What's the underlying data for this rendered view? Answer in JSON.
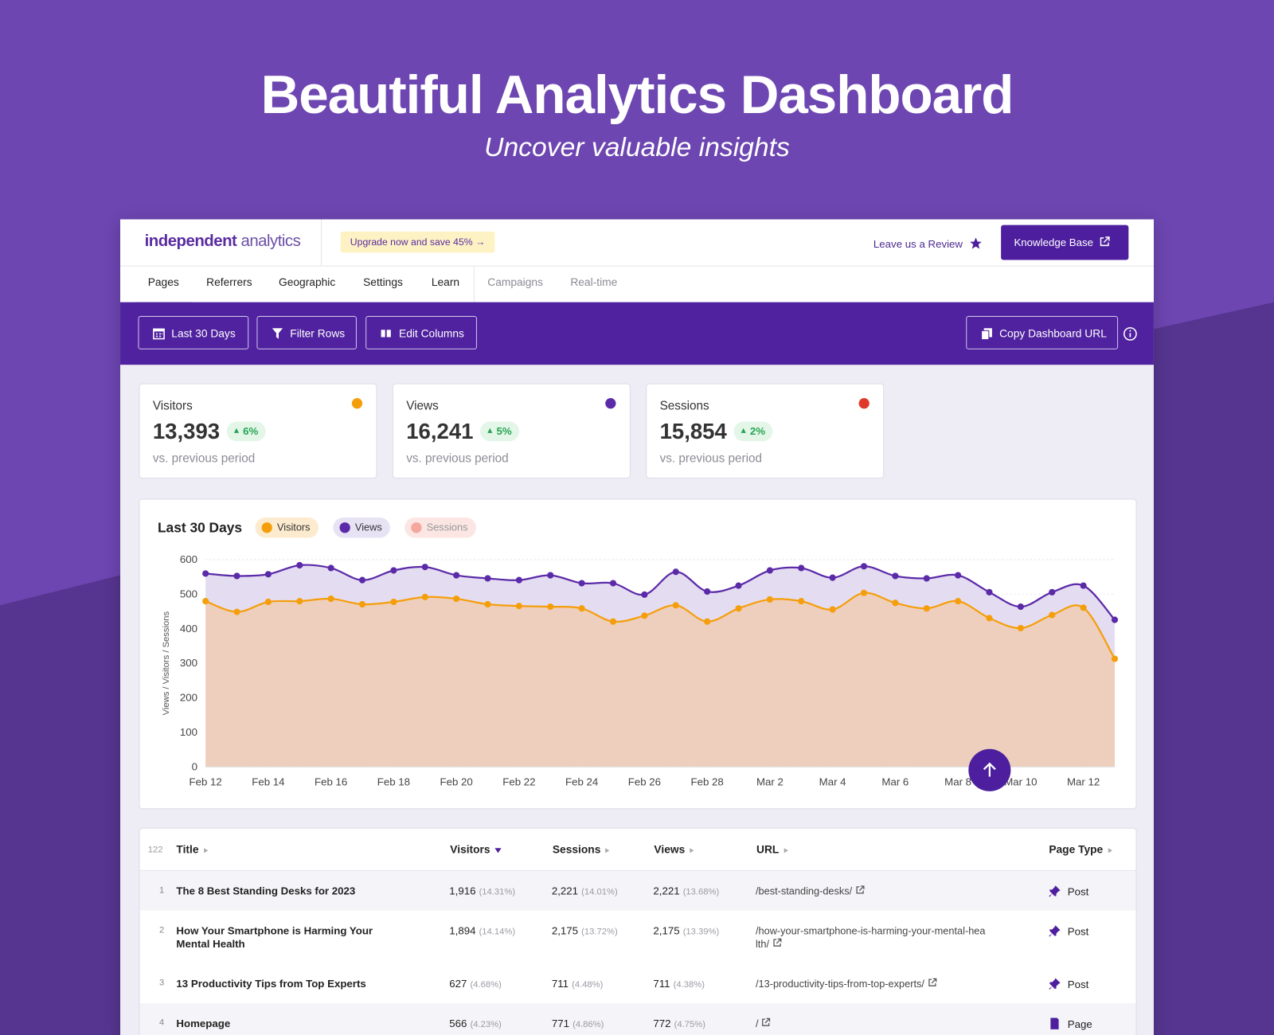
{
  "hero": {
    "title": "Beautiful Analytics Dashboard",
    "subtitle": "Uncover valuable insights"
  },
  "header": {
    "logo_bold": "independent",
    "logo_light": "analytics",
    "upgrade": "Upgrade now and save 45%",
    "review": "Leave us a Review",
    "knowledge_base": "Knowledge Base"
  },
  "tabs": [
    "Pages",
    "Referrers",
    "Geographic",
    "Settings",
    "Learn",
    "Campaigns",
    "Real-time"
  ],
  "toolbar": {
    "date": "Last 30 Days",
    "filter": "Filter Rows",
    "columns": "Edit Columns",
    "copy": "Copy Dashboard URL"
  },
  "cards": [
    {
      "label": "Visitors",
      "value": "13,393",
      "change": "6%",
      "note": "vs. previous period",
      "color": "#f59e0b"
    },
    {
      "label": "Views",
      "value": "16,241",
      "change": "5%",
      "note": "vs. previous period",
      "color": "#5b2aa8"
    },
    {
      "label": "Sessions",
      "value": "15,854",
      "change": "2%",
      "note": "vs. previous period",
      "color": "#e0392b"
    }
  ],
  "chart_data": {
    "type": "line",
    "title": "Last 30 Days",
    "y_label": "Views / Visitors / Sessions",
    "categories": [
      "Feb 12",
      null,
      "Feb 14",
      null,
      "Feb 16",
      null,
      "Feb 18",
      null,
      "Feb 20",
      null,
      "Feb 22",
      null,
      "Feb 24",
      null,
      "Feb 26",
      null,
      "Feb 28",
      null,
      "Mar 2",
      null,
      "Mar 4",
      null,
      "Mar 6",
      null,
      "Mar 8",
      null,
      "Mar 10",
      null,
      "Mar 12",
      null
    ],
    "series": [
      {
        "name": "Views",
        "color": "#5b2aa8",
        "fill": "#e4ddf1",
        "values": [
          560,
          553,
          558,
          584,
          576,
          541,
          569,
          579,
          555,
          546,
          541,
          555,
          532,
          532,
          499,
          565,
          508,
          525,
          569,
          576,
          548,
          581,
          553,
          546,
          555,
          506,
          464,
          506,
          525,
          426
        ]
      },
      {
        "name": "Visitors",
        "color": "#f59e0b",
        "fill": "#eecfbd",
        "values": [
          480,
          449,
          478,
          480,
          487,
          471,
          478,
          492,
          487,
          471,
          466,
          464,
          459,
          421,
          438,
          468,
          421,
          459,
          485,
          480,
          456,
          504,
          475,
          459,
          480,
          431,
          402,
          440,
          461,
          313
        ]
      }
    ],
    "inactive_series": {
      "name": "Sessions",
      "color": "#f4a79d"
    },
    "ylim": [
      0,
      600
    ],
    "yticks": [
      0,
      100,
      200,
      300,
      400,
      500,
      600
    ],
    "grid": true
  },
  "table": {
    "count": "122",
    "columns": [
      "Title",
      "Visitors",
      "Sessions",
      "Views",
      "URL",
      "Page Type"
    ],
    "rows": [
      [
        "1",
        "The 8 Best Standing Desks for 2023",
        "1,916",
        "(14.31%)",
        "2,221",
        "(14.01%)",
        "2,221",
        "(13.68%)",
        "/best-standing-desks/",
        "Post"
      ],
      [
        "2",
        "How Your Smartphone is Harming Your Mental Health",
        "1,894",
        "(14.14%)",
        "2,175",
        "(13.72%)",
        "2,175",
        "(13.39%)",
        "/how-your-smartphone-is-harming-your-mental-health/",
        "Post"
      ],
      [
        "3",
        "13 Productivity Tips from Top Experts",
        "627",
        "(4.68%)",
        "711",
        "(4.48%)",
        "711",
        "(4.38%)",
        "/13-productivity-tips-from-top-experts/",
        "Post"
      ],
      [
        "4",
        "Homepage",
        "566",
        "(4.23%)",
        "771",
        "(4.86%)",
        "772",
        "(4.75%)",
        "/",
        "Page"
      ]
    ]
  }
}
